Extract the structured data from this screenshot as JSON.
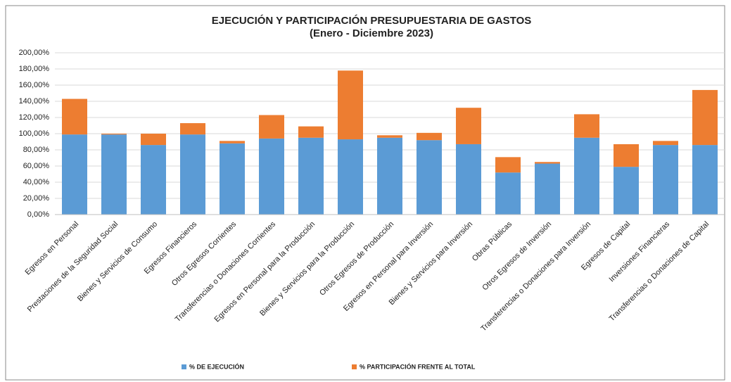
{
  "chart_data": {
    "type": "stacked_bar",
    "title": "EJECUCIÓN Y PARTICIPACIÓN PRESUPUESTARIA DE GASTOS",
    "subtitle": "(Enero - Diciembre 2023)",
    "categories": [
      "Egresos en Personal",
      "Prestaciones de la Seguridad Social",
      "Bienes y Servicios de Consumo",
      "Egresos Financieros",
      "Otros Egresos Corrientes",
      "Transferencias o Donaciones Corrientes",
      "Egresos en Personal para la Producción",
      "Bienes y Servicios para la Producción",
      "Otros Egresos de Producción",
      "Egresos en Personal para Inversión",
      "Bienes y Servicios para Inversión",
      "Obras Públicas",
      "Otros Egresos de Inversión",
      "Transferencias o Donaciones para Inversión",
      "Egresos de Capital",
      "Inversiones Financieras",
      "Transferencias o Donaciones de Capital"
    ],
    "series": [
      {
        "name": "% DE EJECUCIÓN",
        "color": "#5b9bd5",
        "values": [
          99,
          99,
          86,
          99,
          88,
          94,
          95,
          93,
          95,
          92,
          87,
          52,
          63,
          95,
          59,
          86,
          86
        ]
      },
      {
        "name": "% PARTICIPACIÓN FRENTE AL TOTAL",
        "color": "#ed7d31",
        "values": [
          44,
          1,
          14,
          14,
          3,
          29,
          14,
          85,
          3,
          9,
          45,
          19,
          2,
          29,
          28,
          5,
          68
        ]
      }
    ],
    "ylim": [
      0,
      200
    ],
    "yticks": [
      {
        "value": 0,
        "label": "0,00%"
      },
      {
        "value": 20,
        "label": "20,00%"
      },
      {
        "value": 40,
        "label": "40,00%"
      },
      {
        "value": 60,
        "label": "60,00%"
      },
      {
        "value": 80,
        "label": "80,00%"
      },
      {
        "value": 100,
        "label": "100,00%"
      },
      {
        "value": 120,
        "label": "120,00%"
      },
      {
        "value": 140,
        "label": "140,00%"
      },
      {
        "value": 160,
        "label": "160,00%"
      },
      {
        "value": 180,
        "label": "180,00%"
      },
      {
        "value": 200,
        "label": "200,00%"
      }
    ],
    "grid": true,
    "legend": "bottom"
  }
}
